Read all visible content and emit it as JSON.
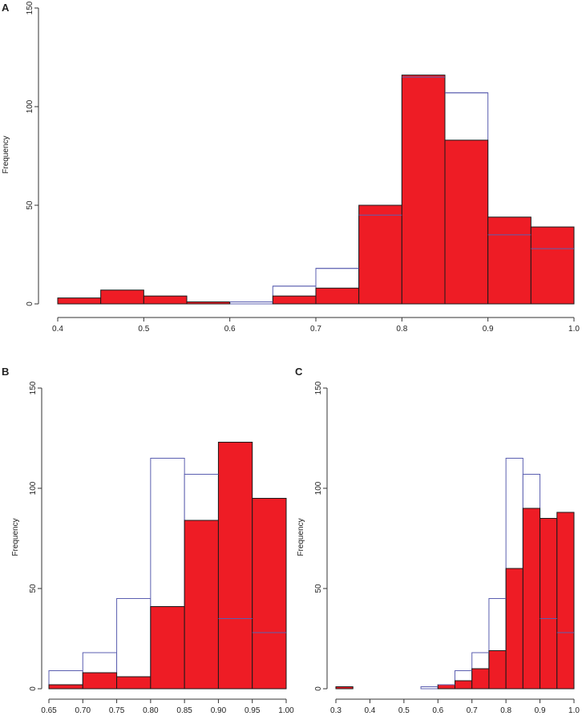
{
  "chart_data": [
    {
      "type": "bar",
      "panel_label": "A",
      "ylabel": "Frequency",
      "ylim": [
        0,
        150
      ],
      "yticks": [
        "0",
        "50",
        "100",
        "150"
      ],
      "xlim": [
        0.4,
        1.0
      ],
      "xticks": [
        "0.4",
        "0.5",
        "0.6",
        "0.7",
        "0.8",
        "0.9",
        "1.0"
      ],
      "bin_edges": [
        0.4,
        0.45,
        0.5,
        0.55,
        0.6,
        0.65,
        0.7,
        0.75,
        0.8,
        0.85,
        0.9,
        0.95,
        1.0
      ],
      "series": [
        {
          "name": "outline-histogram",
          "style": "outline",
          "color": "#5b5fb0",
          "values": [
            0,
            0,
            0,
            0,
            1,
            9,
            18,
            45,
            115,
            107,
            35,
            28
          ]
        },
        {
          "name": "red-histogram",
          "style": "filled",
          "color": "#ee1c25",
          "values": [
            3,
            7,
            4,
            1,
            0,
            4,
            8,
            50,
            116,
            83,
            44,
            39
          ]
        }
      ]
    },
    {
      "type": "bar",
      "panel_label": "B",
      "ylabel": "Frequency",
      "ylim": [
        0,
        150
      ],
      "yticks": [
        "0",
        "50",
        "100",
        "150"
      ],
      "xlim": [
        0.65,
        1.0
      ],
      "xticks": [
        "0.65",
        "0.70",
        "0.75",
        "0.80",
        "0.85",
        "0.90",
        "0.95",
        "1.00"
      ],
      "bin_edges": [
        0.65,
        0.7,
        0.75,
        0.8,
        0.85,
        0.9,
        0.95,
        1.0
      ],
      "series": [
        {
          "name": "outline-histogram",
          "style": "outline",
          "color": "#5b5fb0",
          "values": [
            9,
            18,
            45,
            115,
            107,
            35,
            28
          ]
        },
        {
          "name": "red-histogram",
          "style": "filled",
          "color": "#ee1c25",
          "values": [
            2,
            8,
            6,
            41,
            84,
            123,
            95
          ]
        }
      ]
    },
    {
      "type": "bar",
      "panel_label": "C",
      "ylabel": "Frequency",
      "ylim": [
        0,
        150
      ],
      "yticks": [
        "0",
        "50",
        "100",
        "150"
      ],
      "xlim": [
        0.3,
        1.0
      ],
      "xticks": [
        "0.3",
        "0.4",
        "0.5",
        "0.6",
        "0.7",
        "0.8",
        "0.9",
        "1.0"
      ],
      "bin_edges": [
        0.3,
        0.35,
        0.4,
        0.45,
        0.5,
        0.55,
        0.6,
        0.65,
        0.7,
        0.75,
        0.8,
        0.85,
        0.9,
        0.95,
        1.0
      ],
      "series": [
        {
          "name": "outline-histogram",
          "style": "outline",
          "color": "#5b5fb0",
          "values": [
            0,
            0,
            0,
            0,
            0,
            1,
            2,
            9,
            18,
            45,
            115,
            107,
            35,
            28
          ]
        },
        {
          "name": "red-histogram",
          "style": "filled",
          "color": "#ee1c25",
          "values": [
            1,
            0,
            0,
            0,
            0,
            0,
            2,
            4,
            10,
            19,
            60,
            90,
            85,
            88
          ]
        }
      ]
    }
  ]
}
